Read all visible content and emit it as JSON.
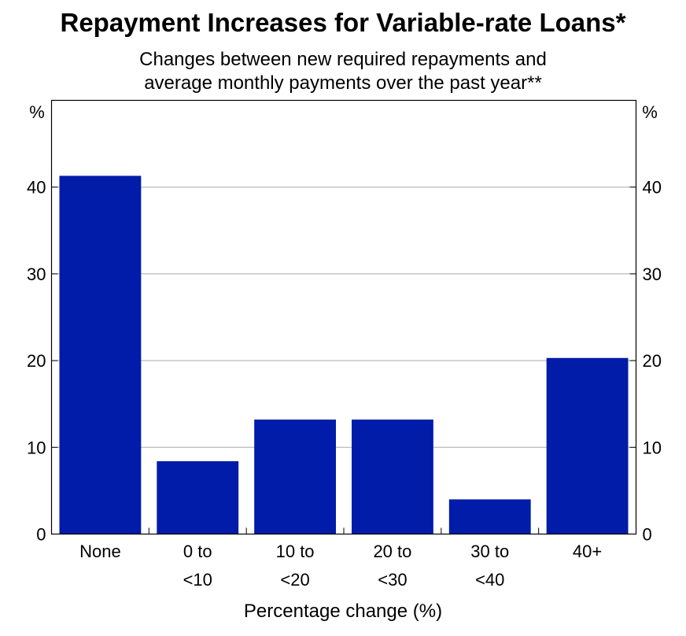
{
  "chart_data": {
    "type": "bar",
    "title": "Repayment Increases for Variable-rate Loans*",
    "subtitle": [
      "Changes between new required repayments and",
      "average monthly payments over the past year**"
    ],
    "categories": [
      [
        "None"
      ],
      [
        "0 to",
        "<10"
      ],
      [
        "10 to",
        "<20"
      ],
      [
        "20 to",
        "<30"
      ],
      [
        "30 to",
        "<40"
      ],
      [
        "40+"
      ]
    ],
    "values": [
      41.3,
      8.4,
      13.2,
      13.2,
      4.0,
      20.3
    ],
    "xlabel": "Percentage change (%)",
    "ylabel_left": "%",
    "ylabel_right": "%",
    "ylim": [
      0,
      50
    ],
    "yticks": [
      0,
      10,
      20,
      30,
      40
    ],
    "grid": true,
    "bar_color": "#001CA8"
  }
}
